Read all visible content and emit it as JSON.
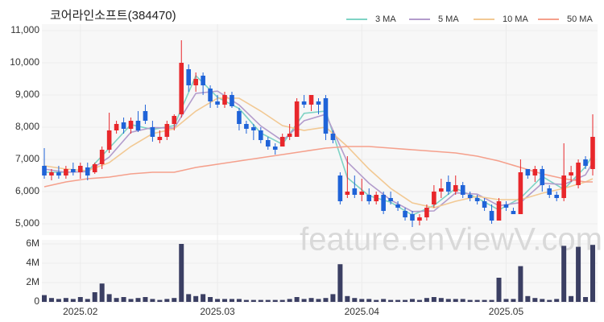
{
  "chart_data": [
    {
      "type": "candlestick",
      "title": "코어라인소프트(384470)",
      "watermark": "feature.enViewV.com",
      "open": [
        6800,
        6500,
        6600,
        6500,
        6700,
        6600,
        6750,
        6600,
        6850,
        7300,
        7900,
        8150,
        7950,
        8200,
        8500,
        8000,
        7600,
        7700,
        8100,
        8400,
        9800,
        9300,
        9600,
        9200,
        8800,
        8700,
        9000,
        8500,
        8100,
        8000,
        7900,
        7600,
        7400,
        7400,
        7700,
        7700,
        8800,
        8700,
        8800,
        8900,
        7800,
        6500,
        5900,
        6100,
        5900,
        5900,
        5700,
        5900,
        5800,
        5600,
        5400,
        5300,
        5100,
        5200,
        5600,
        6000,
        6300,
        6000,
        6200,
        5900,
        5800,
        5700,
        5400,
        5100,
        5600,
        5400,
        5300,
        6700,
        6500,
        6700,
        6100,
        5900,
        5800,
        6500,
        6200,
        7000,
        6700
      ],
      "high": [
        7350,
        6700,
        6800,
        6800,
        6900,
        6900,
        6900,
        6900,
        7400,
        8450,
        8200,
        8300,
        8300,
        8500,
        8700,
        8200,
        7900,
        8200,
        8400,
        10700,
        9950,
        9700,
        9700,
        9300,
        9000,
        9100,
        9100,
        8600,
        8200,
        8100,
        8000,
        7700,
        7500,
        7800,
        8100,
        8900,
        9000,
        9000,
        8900,
        9000,
        7900,
        6600,
        7100,
        6500,
        6400,
        6100,
        6000,
        6000,
        6000,
        5700,
        5500,
        5400,
        5300,
        5600,
        6200,
        6400,
        6500,
        6500,
        6300,
        6000,
        5900,
        5800,
        5600,
        5800,
        5700,
        5500,
        7000,
        6700,
        6800,
        6800,
        6200,
        6000,
        7500,
        6800,
        7000,
        7100,
        8400
      ],
      "low": [
        6400,
        6350,
        6400,
        6400,
        6500,
        6400,
        6350,
        6550,
        6700,
        7200,
        7800,
        7800,
        7800,
        7850,
        8100,
        7550,
        7500,
        7600,
        7900,
        8300,
        9100,
        9100,
        9000,
        8600,
        8600,
        8600,
        8600,
        7900,
        7800,
        7600,
        7500,
        7300,
        7150,
        7400,
        7600,
        7700,
        8600,
        8500,
        8400,
        7600,
        7500,
        5600,
        5800,
        5800,
        5700,
        5600,
        5600,
        5300,
        5600,
        5400,
        5100,
        4900,
        4950,
        5100,
        5500,
        5800,
        5900,
        5900,
        5800,
        5700,
        5600,
        5400,
        5000,
        5100,
        5400,
        5300,
        5300,
        6400,
        6300,
        6000,
        5800,
        5700,
        5700,
        6300,
        6100,
        6700,
        6500
      ],
      "close": [
        6500,
        6600,
        6500,
        6700,
        6600,
        6800,
        6500,
        6850,
        7300,
        7900,
        8100,
        7950,
        8200,
        7900,
        8200,
        7700,
        7700,
        8100,
        8350,
        10000,
        9300,
        9500,
        9300,
        8800,
        8700,
        9000,
        8650,
        8100,
        7950,
        7900,
        7600,
        7400,
        7300,
        7700,
        7800,
        8800,
        8700,
        9000,
        8700,
        7800,
        7600,
        5700,
        6000,
        5900,
        6000,
        5700,
        5900,
        5400,
        5700,
        5500,
        5200,
        5100,
        5200,
        5500,
        6000,
        6100,
        6000,
        6200,
        5900,
        5800,
        5700,
        5500,
        5100,
        5700,
        5500,
        5300,
        6600,
        6500,
        6700,
        6200,
        5900,
        5800,
        6500,
        6600,
        6900,
        6800,
        7700
      ],
      "up_color": "#e8272b",
      "down_color": "#1f63d8",
      "ma_x": [
        0,
        3,
        6,
        9,
        12,
        15,
        18,
        21,
        24,
        27,
        30,
        33,
        36,
        39,
        42,
        45,
        48,
        51,
        54,
        57,
        60,
        63,
        66,
        69,
        72,
        75,
        76
      ],
      "series": [
        {
          "name": "3 MA",
          "color": "#7fd3c5",
          "values": [
            6600,
            6600,
            6630,
            7350,
            8080,
            7930,
            8050,
            9600,
            8930,
            8580,
            7820,
            7470,
            8430,
            8500,
            6430,
            5870,
            5670,
            5270,
            5570,
            6100,
            5800,
            5430,
            5800,
            6470,
            6070,
            6770,
            7130
          ]
        },
        {
          "name": "5 MA",
          "color": "#b39ccc",
          "values": [
            6700,
            6600,
            6620,
            7070,
            7840,
            7990,
            7970,
            9050,
            9120,
            8690,
            8040,
            7580,
            8200,
            8400,
            6920,
            6260,
            5740,
            5380,
            5400,
            5960,
            5920,
            5560,
            5660,
            6260,
            6220,
            6520,
            6900
          ]
        },
        {
          "name": "10 MA",
          "color": "#f2c994",
          "values": [
            6800,
            6700,
            6650,
            6900,
            7400,
            7800,
            7950,
            8500,
            8900,
            8900,
            8500,
            8050,
            7900,
            8000,
            7400,
            6700,
            6100,
            5650,
            5500,
            5700,
            5850,
            5750,
            5750,
            5950,
            6100,
            6300,
            6400
          ]
        },
        {
          "name": "50 MA",
          "color": "#f5a08c",
          "values": [
            6150,
            6300,
            6400,
            6450,
            6550,
            6600,
            6600,
            6750,
            6850,
            6950,
            7050,
            7150,
            7250,
            7350,
            7400,
            7400,
            7350,
            7300,
            7250,
            7200,
            7100,
            6950,
            6750,
            6550,
            6400,
            6300,
            6300
          ]
        }
      ],
      "ylim": [
        4700,
        11150
      ],
      "yticks": [
        {
          "value": 5000,
          "label": "5,000"
        },
        {
          "value": 6000,
          "label": "6,000"
        },
        {
          "value": 7000,
          "label": "7,000"
        },
        {
          "value": 8000,
          "label": "8,000"
        },
        {
          "value": 9000,
          "label": "9,000"
        },
        {
          "value": 10000,
          "label": "10,000"
        },
        {
          "value": 11000,
          "label": "11,000"
        }
      ],
      "grid": true,
      "legend": "top-right"
    },
    {
      "type": "bar",
      "color": "#3b3f63",
      "categories": [
        null,
        null,
        null,
        null,
        null,
        "2025.02",
        null,
        null,
        null,
        null,
        null,
        null,
        null,
        null,
        null,
        null,
        null,
        null,
        null,
        null,
        null,
        null,
        null,
        null,
        "2025.03",
        null,
        null,
        null,
        null,
        null,
        null,
        null,
        null,
        null,
        null,
        null,
        null,
        null,
        null,
        null,
        null,
        null,
        null,
        null,
        "2025.04",
        null,
        null,
        null,
        null,
        null,
        null,
        null,
        null,
        null,
        null,
        null,
        null,
        null,
        null,
        null,
        null,
        null,
        null,
        null,
        "2025.05",
        null,
        null,
        null,
        null,
        null,
        null,
        null,
        null,
        null,
        null,
        null,
        null
      ],
      "values": [
        0.7,
        0.4,
        0.3,
        0.4,
        0.3,
        0.5,
        0.3,
        1.0,
        1.9,
        0.8,
        0.4,
        0.5,
        0.3,
        0.4,
        0.5,
        0.3,
        0.2,
        0.3,
        0.4,
        6.0,
        0.8,
        0.6,
        0.8,
        0.5,
        0.3,
        0.3,
        0.3,
        0.3,
        0.2,
        0.2,
        0.2,
        0.2,
        0.2,
        0.2,
        0.3,
        0.5,
        0.3,
        0.4,
        0.3,
        0.4,
        0.8,
        3.9,
        0.6,
        0.4,
        0.3,
        0.3,
        0.2,
        0.3,
        0.2,
        0.2,
        0.2,
        0.3,
        0.2,
        0.4,
        0.5,
        0.4,
        0.3,
        0.3,
        0.3,
        0.2,
        0.2,
        0.2,
        0.2,
        2.5,
        0.3,
        0.3,
        3.7,
        0.6,
        0.4,
        0.3,
        0.2,
        0.3,
        5.8,
        0.6,
        5.7,
        0.5,
        5.9
      ],
      "ylim": [
        0,
        6
      ],
      "yticks": [
        0,
        {
          "value": 2,
          "label": "2M"
        },
        {
          "value": 4,
          "label": "4M"
        },
        {
          "value": 6,
          "label": "6M"
        }
      ],
      "grid": true
    }
  ]
}
